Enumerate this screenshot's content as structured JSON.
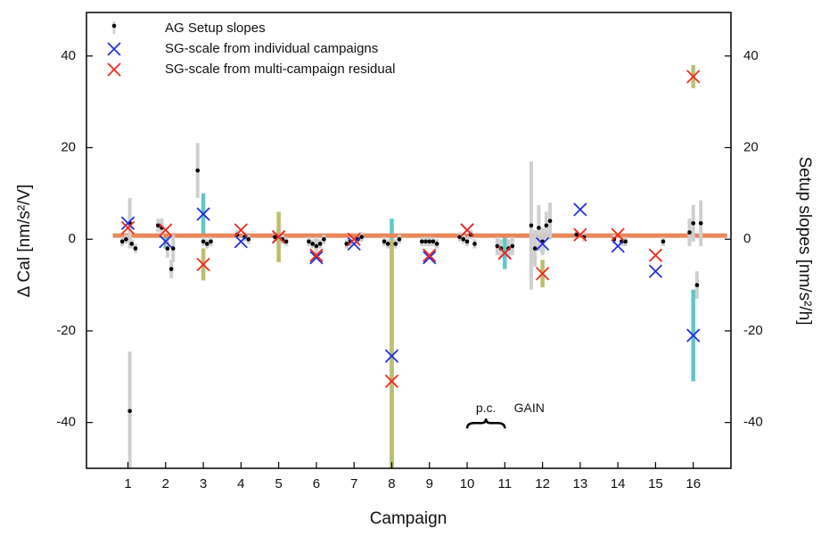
{
  "chart_data": {
    "type": "scatter",
    "xlabel": "Campaign",
    "ylabel": "Δ Cal [nm/s²/V]",
    "y2label": "Setup slopes [nm/s²/h]",
    "xlim": [
      -0.1,
      17
    ],
    "ylim": [
      -50,
      49.5
    ],
    "y2lim": [
      -50,
      49.5
    ],
    "xticks": [
      1,
      2,
      3,
      4,
      5,
      6,
      7,
      8,
      9,
      10,
      11,
      12,
      13,
      14,
      15,
      16
    ],
    "yticks": [
      -40,
      -20,
      0,
      20,
      40
    ],
    "y2ticks": [
      -40,
      -20,
      0,
      20,
      40
    ],
    "reference_line": {
      "value": 0.8,
      "xrange": [
        0.6,
        16.9
      ],
      "color": "#e8875a"
    },
    "series": [
      {
        "name": "AG Setup slopes",
        "marker": "dot",
        "axis": "y2",
        "color": "#000000",
        "error_color": "#cfcfcf",
        "x": [
          0.85,
          0.95,
          1.05,
          1.1,
          1.05,
          1.2,
          1.8,
          1.9,
          2.05,
          2.15,
          2.2,
          2.85,
          3.0,
          3.1,
          3.2,
          3.9,
          4.1,
          4.2,
          4.9,
          5.1,
          5.2,
          5.8,
          5.9,
          6.0,
          6.1,
          6.2,
          6.8,
          6.9,
          7.1,
          7.2,
          7.8,
          7.9,
          8.1,
          8.2,
          8.8,
          8.9,
          9.0,
          9.1,
          9.2,
          9.8,
          9.9,
          10.0,
          10.1,
          10.2,
          10.8,
          10.9,
          11.1,
          11.2,
          11.7,
          11.8,
          11.9,
          12.0,
          12.1,
          12.2,
          12.9,
          13.1,
          13.9,
          14.1,
          14.2,
          15.2,
          15.9,
          16.0,
          16.1,
          16.2
        ],
        "values": [
          -0.5,
          0,
          3.5,
          -1,
          -37.5,
          -2,
          3,
          2.5,
          -2,
          -6.5,
          -2,
          15,
          -0.5,
          -1,
          -0.5,
          1,
          0.5,
          0,
          0.5,
          0,
          -0.5,
          -0.5,
          -1,
          -1.5,
          -1,
          0,
          -1,
          -0.5,
          0,
          0.5,
          -0.5,
          -1,
          -1,
          0,
          -0.5,
          -0.5,
          -0.5,
          -0.5,
          -1,
          0.5,
          0,
          -0.5,
          1,
          -1,
          -1.5,
          -2,
          -2,
          -1.5,
          3,
          -2,
          2.5,
          -0.5,
          3,
          4,
          1,
          0.5,
          0,
          -0.5,
          -0.5,
          -0.5,
          1.5,
          3.5,
          -10,
          3.5
        ],
        "errors": [
          1,
          1,
          5.5,
          1,
          13,
          1,
          1.5,
          2,
          2,
          2,
          3,
          6,
          1,
          1,
          1,
          1,
          1,
          1,
          1,
          1,
          1,
          1,
          1,
          2,
          1,
          1,
          1,
          1,
          1,
          1,
          1,
          1,
          1,
          1,
          1,
          1,
          1,
          1,
          1,
          1,
          1,
          1,
          1,
          1,
          2,
          2,
          2,
          2,
          14,
          4,
          5,
          3,
          3,
          4,
          1,
          1,
          1,
          1,
          1,
          1,
          3,
          4,
          3,
          5
        ]
      },
      {
        "name": "SG-scale from individual campaigns",
        "marker": "x",
        "color": "#2330dd",
        "error_color": "#5ec8c8",
        "x": [
          1,
          2,
          3,
          4,
          5,
          6,
          7,
          8,
          9,
          10,
          11,
          12,
          13,
          14,
          15,
          16
        ],
        "values": [
          3.5,
          -0.5,
          5.5,
          -0.5,
          0.5,
          -4,
          -1,
          -25.5,
          -4,
          2,
          -3,
          -1,
          6.5,
          -1.5,
          -7,
          -21
        ],
        "errors": [
          null,
          1.5,
          4.5,
          null,
          1,
          null,
          null,
          30,
          null,
          null,
          3.5,
          2,
          null,
          null,
          null,
          10
        ]
      },
      {
        "name": "SG-scale from multi-campaign residual",
        "marker": "x",
        "color": "#f02a1c",
        "error_color": "#bdbd6e",
        "x": [
          1,
          2,
          3,
          4,
          5,
          6,
          7,
          8,
          9,
          10,
          11,
          12,
          13,
          14,
          15,
          16
        ],
        "values": [
          2.5,
          2,
          -5.5,
          2,
          0.5,
          -3.5,
          0,
          -31,
          -3.5,
          2,
          -3,
          -7.5,
          1,
          1,
          -3.5,
          35.5
        ],
        "errors": [
          null,
          null,
          3.5,
          null,
          5.5,
          null,
          null,
          31,
          null,
          null,
          null,
          3,
          null,
          null,
          null,
          2.5
        ]
      }
    ],
    "annotations": [
      "p.c.",
      "GAIN"
    ]
  }
}
